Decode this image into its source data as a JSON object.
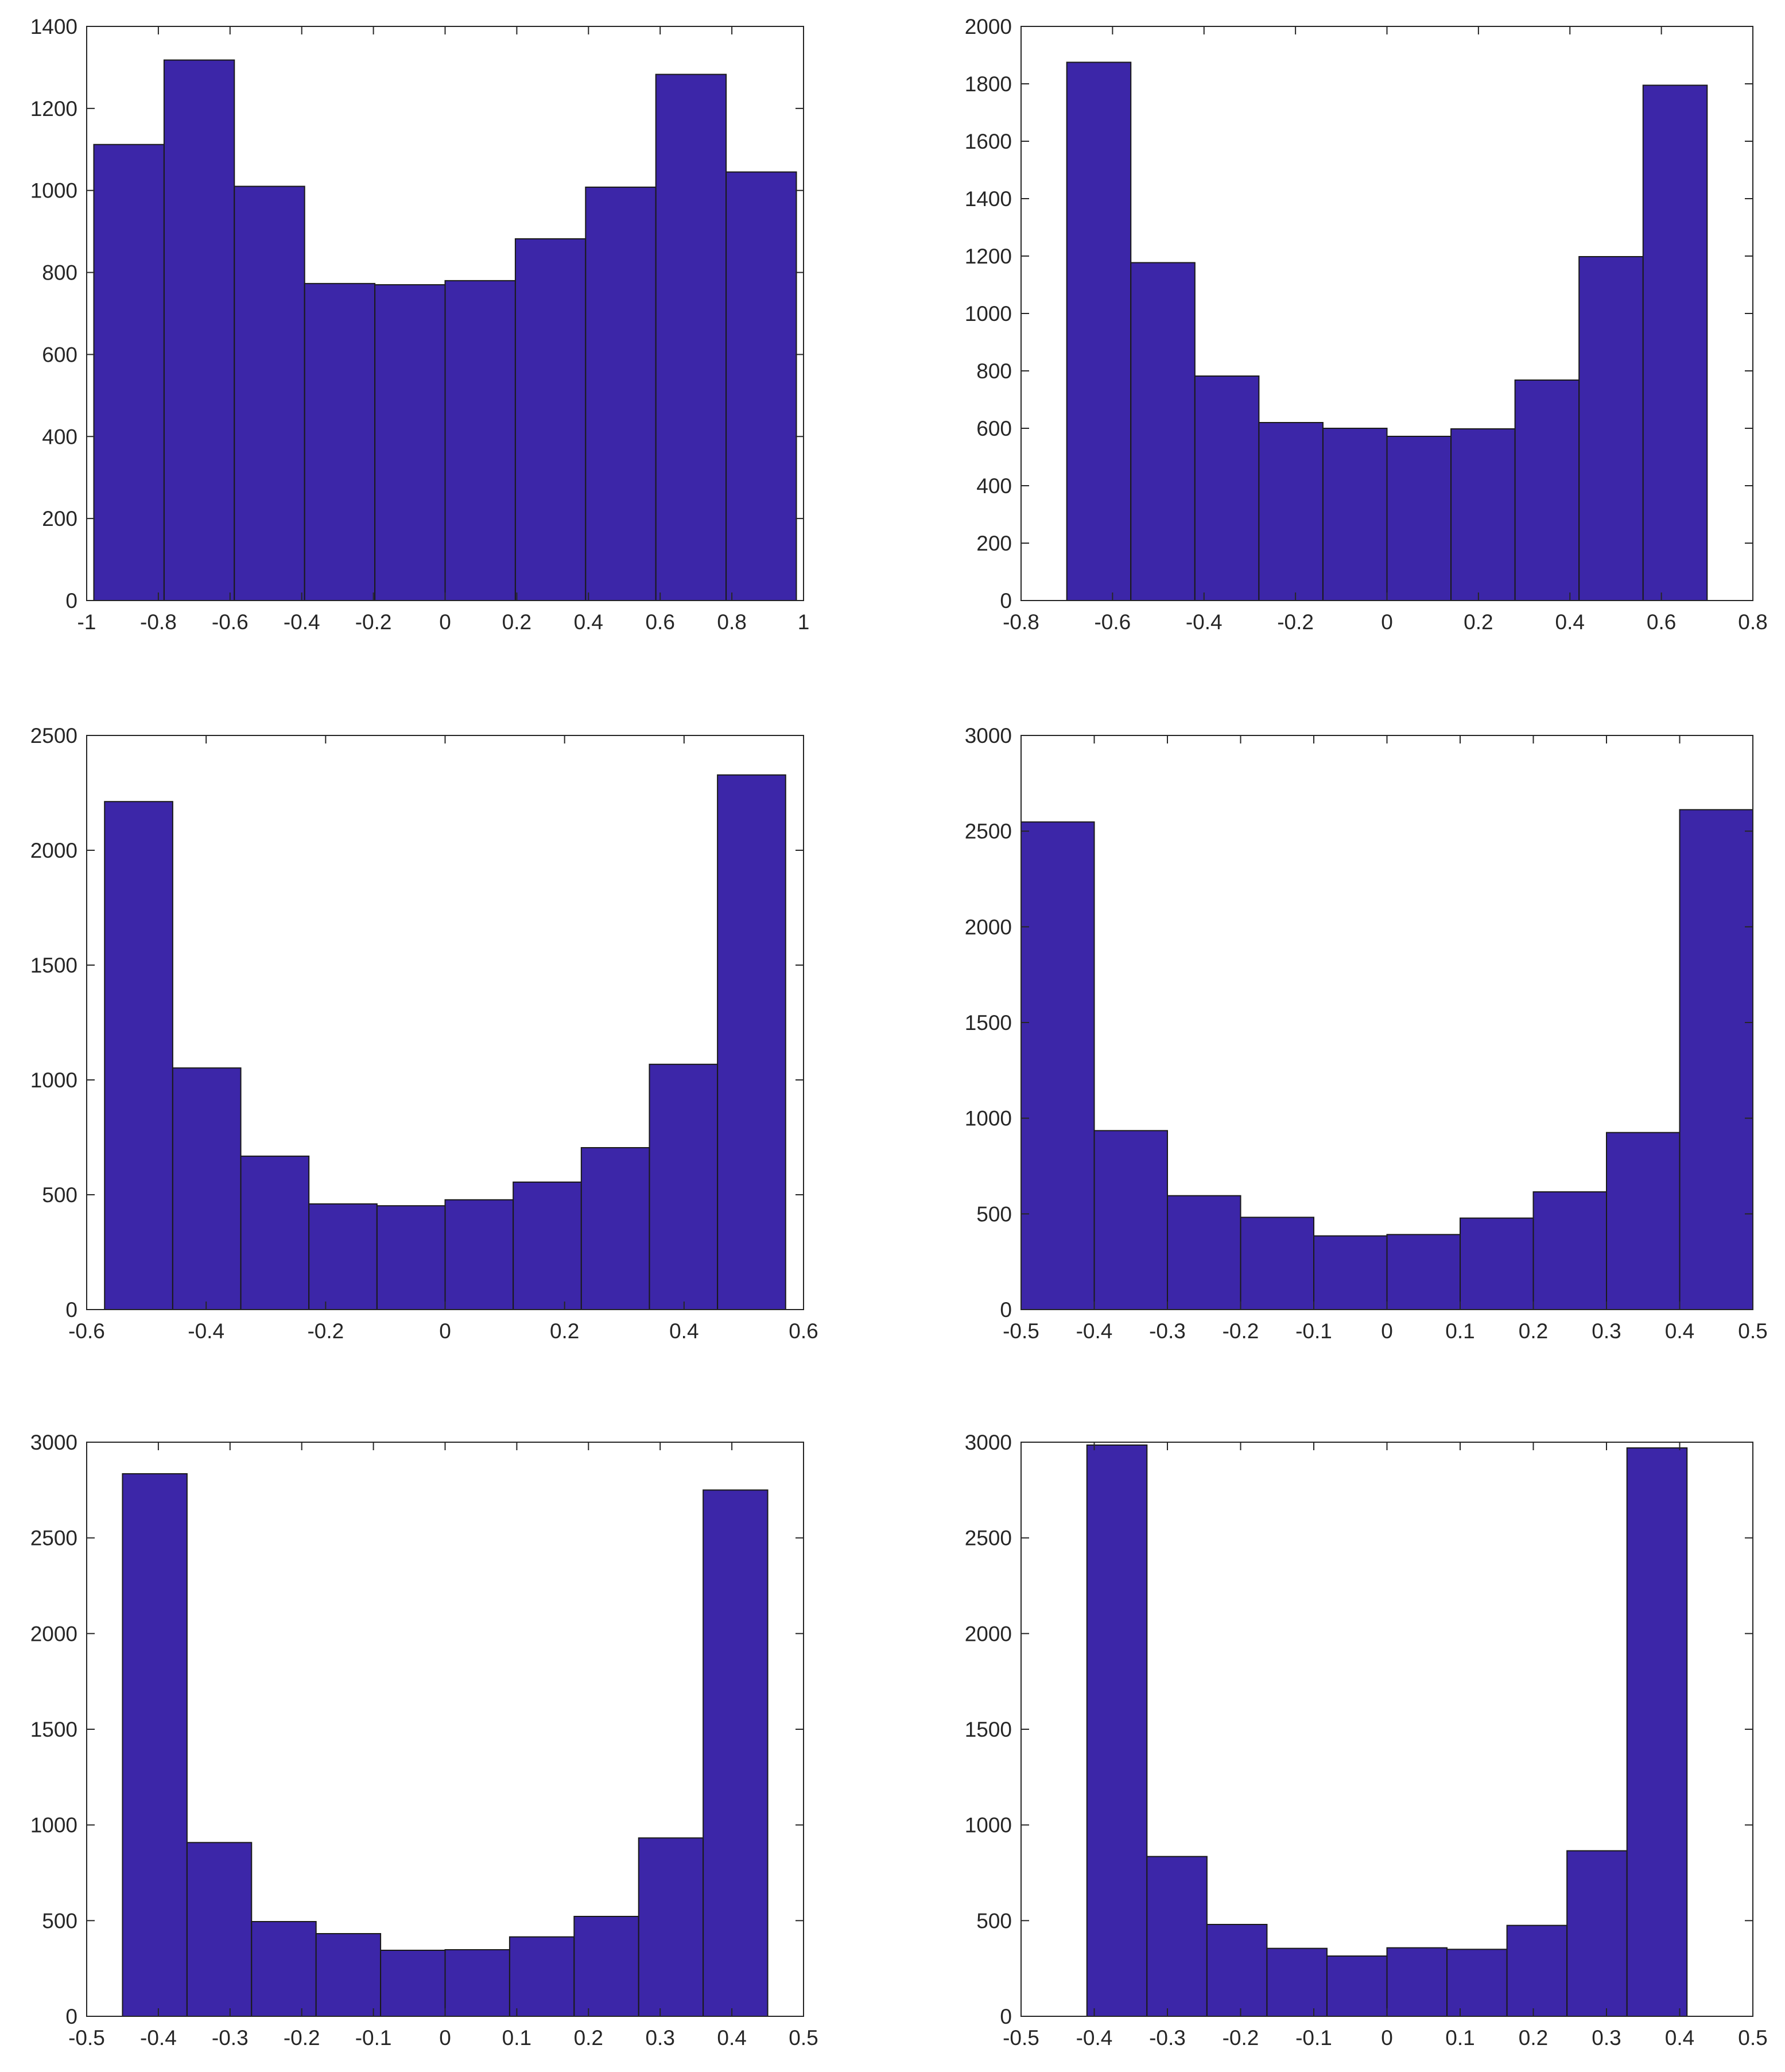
{
  "figure": {
    "layout": "3 rows x 2 columns",
    "bar_color": "#3c26a8",
    "bar_edge_color": "#1a1a1a",
    "axis_color": "#262626",
    "background": "#ffffff"
  },
  "chart_data": [
    {
      "type": "bar",
      "subtype": "histogram",
      "bin_edges": [
        -0.98,
        -0.784,
        -0.588,
        -0.392,
        -0.196,
        0,
        0.196,
        0.392,
        0.588,
        0.784,
        0.98
      ],
      "values": [
        1112,
        1318,
        1010,
        773,
        770,
        780,
        882,
        1008,
        1283,
        1045
      ],
      "xlim": [
        -1,
        1
      ],
      "ylim": [
        0,
        1400
      ],
      "xticks": [
        -1,
        -0.8,
        -0.6,
        -0.4,
        -0.2,
        0,
        0.2,
        0.4,
        0.6,
        0.8,
        1
      ],
      "xtick_labels": [
        "-1",
        "-0.8",
        "-0.6",
        "-0.4",
        "-0.2",
        "0",
        "0.2",
        "0.4",
        "0.6",
        "0.8",
        "1"
      ],
      "yticks": [
        0,
        200,
        400,
        600,
        800,
        1000,
        1200,
        1400
      ],
      "ytick_labels": [
        "0",
        "200",
        "400",
        "600",
        "800",
        "1000",
        "1200",
        "1400"
      ],
      "title": "",
      "xlabel": "",
      "ylabel": "",
      "grid": false
    },
    {
      "type": "bar",
      "subtype": "histogram",
      "bin_edges": [
        -0.7,
        -0.56,
        -0.42,
        -0.28,
        -0.14,
        0,
        0.14,
        0.28,
        0.42,
        0.56,
        0.7
      ],
      "values": [
        1875,
        1177,
        782,
        620,
        600,
        572,
        598,
        768,
        1198,
        1795
      ],
      "xlim": [
        -0.8,
        0.8
      ],
      "ylim": [
        0,
        2000
      ],
      "xticks": [
        -0.8,
        -0.6,
        -0.4,
        -0.2,
        0,
        0.2,
        0.4,
        0.6,
        0.8
      ],
      "xtick_labels": [
        "-0.8",
        "-0.6",
        "-0.4",
        "-0.2",
        "0",
        "0.2",
        "0.4",
        "0.6",
        "0.8"
      ],
      "yticks": [
        0,
        200,
        400,
        600,
        800,
        1000,
        1200,
        1400,
        1600,
        1800,
        2000
      ],
      "ytick_labels": [
        "0",
        "200",
        "400",
        "600",
        "800",
        "1000",
        "1200",
        "1400",
        "1600",
        "1800",
        "2000"
      ],
      "title": "",
      "xlabel": "",
      "ylabel": "",
      "grid": false
    },
    {
      "type": "bar",
      "subtype": "histogram",
      "bin_edges": [
        -0.57,
        -0.456,
        -0.342,
        -0.228,
        -0.114,
        0,
        0.114,
        0.228,
        0.342,
        0.456,
        0.57
      ],
      "values": [
        2212,
        1052,
        668,
        460,
        452,
        478,
        555,
        705,
        1068,
        2328
      ],
      "xlim": [
        -0.6,
        0.6
      ],
      "ylim": [
        0,
        2500
      ],
      "xticks": [
        -0.6,
        -0.4,
        -0.2,
        0,
        0.2,
        0.4,
        0.6
      ],
      "xtick_labels": [
        "-0.6",
        "-0.4",
        "-0.2",
        "0",
        "0.2",
        "0.4",
        "0.6"
      ],
      "yticks": [
        0,
        500,
        1000,
        1500,
        2000,
        2500
      ],
      "ytick_labels": [
        "0",
        "500",
        "1000",
        "1500",
        "2000",
        "2500"
      ],
      "title": "",
      "xlabel": "",
      "ylabel": "",
      "grid": false
    },
    {
      "type": "bar",
      "subtype": "histogram",
      "bin_edges": [
        -0.5,
        -0.4,
        -0.3,
        -0.2,
        -0.1,
        0,
        0.1,
        0.2,
        0.3,
        0.4,
        0.5
      ],
      "values": [
        2548,
        935,
        595,
        482,
        385,
        392,
        478,
        615,
        925,
        2612
      ],
      "xlim": [
        -0.5,
        0.5
      ],
      "ylim": [
        0,
        3000
      ],
      "xticks": [
        -0.5,
        -0.4,
        -0.3,
        -0.2,
        -0.1,
        0,
        0.1,
        0.2,
        0.3,
        0.4,
        0.5
      ],
      "xtick_labels": [
        "-0.5",
        "-0.4",
        "-0.3",
        "-0.2",
        "-0.1",
        "0",
        "0.1",
        "0.2",
        "0.3",
        "0.4",
        "0.5"
      ],
      "yticks": [
        0,
        500,
        1000,
        1500,
        2000,
        2500,
        3000
      ],
      "ytick_labels": [
        "0",
        "500",
        "1000",
        "1500",
        "2000",
        "2500",
        "3000"
      ],
      "title": "",
      "xlabel": "",
      "ylabel": "",
      "grid": false
    },
    {
      "type": "bar",
      "subtype": "histogram",
      "bin_edges": [
        -0.45,
        -0.36,
        -0.27,
        -0.18,
        -0.09,
        0,
        0.09,
        0.18,
        0.27,
        0.36,
        0.45
      ],
      "values": [
        2835,
        908,
        495,
        432,
        345,
        348,
        415,
        522,
        932,
        2750
      ],
      "xlim": [
        -0.5,
        0.5
      ],
      "ylim": [
        0,
        3000
      ],
      "xticks": [
        -0.5,
        -0.4,
        -0.3,
        -0.2,
        -0.1,
        0,
        0.1,
        0.2,
        0.3,
        0.4,
        0.5
      ],
      "xtick_labels": [
        "-0.5",
        "-0.4",
        "-0.3",
        "-0.2",
        "-0.1",
        "0",
        "0.1",
        "0.2",
        "0.3",
        "0.4",
        "0.5"
      ],
      "yticks": [
        0,
        500,
        1000,
        1500,
        2000,
        2500,
        3000
      ],
      "ytick_labels": [
        "0",
        "500",
        "1000",
        "1500",
        "2000",
        "2500",
        "3000"
      ],
      "title": "",
      "xlabel": "",
      "ylabel": "",
      "grid": false
    },
    {
      "type": "bar",
      "subtype": "histogram",
      "bin_edges": [
        -0.41,
        -0.328,
        -0.246,
        -0.164,
        -0.082,
        0,
        0.082,
        0.164,
        0.246,
        0.328,
        0.41
      ],
      "values": [
        2985,
        835,
        480,
        355,
        315,
        358,
        350,
        475,
        865,
        2970
      ],
      "xlim": [
        -0.5,
        0.5
      ],
      "ylim": [
        0,
        3000
      ],
      "xticks": [
        -0.5,
        -0.4,
        -0.3,
        -0.2,
        -0.1,
        0,
        0.1,
        0.2,
        0.3,
        0.4,
        0.5
      ],
      "xtick_labels": [
        "-0.5",
        "-0.4",
        "-0.3",
        "-0.2",
        "-0.1",
        "0",
        "0.1",
        "0.2",
        "0.3",
        "0.4",
        "0.5"
      ],
      "yticks": [
        0,
        500,
        1000,
        1500,
        2000,
        2500,
        3000
      ],
      "ytick_labels": [
        "0",
        "500",
        "1000",
        "1500",
        "2000",
        "2500",
        "3000"
      ],
      "title": "",
      "xlabel": "",
      "ylabel": "",
      "grid": false
    }
  ]
}
